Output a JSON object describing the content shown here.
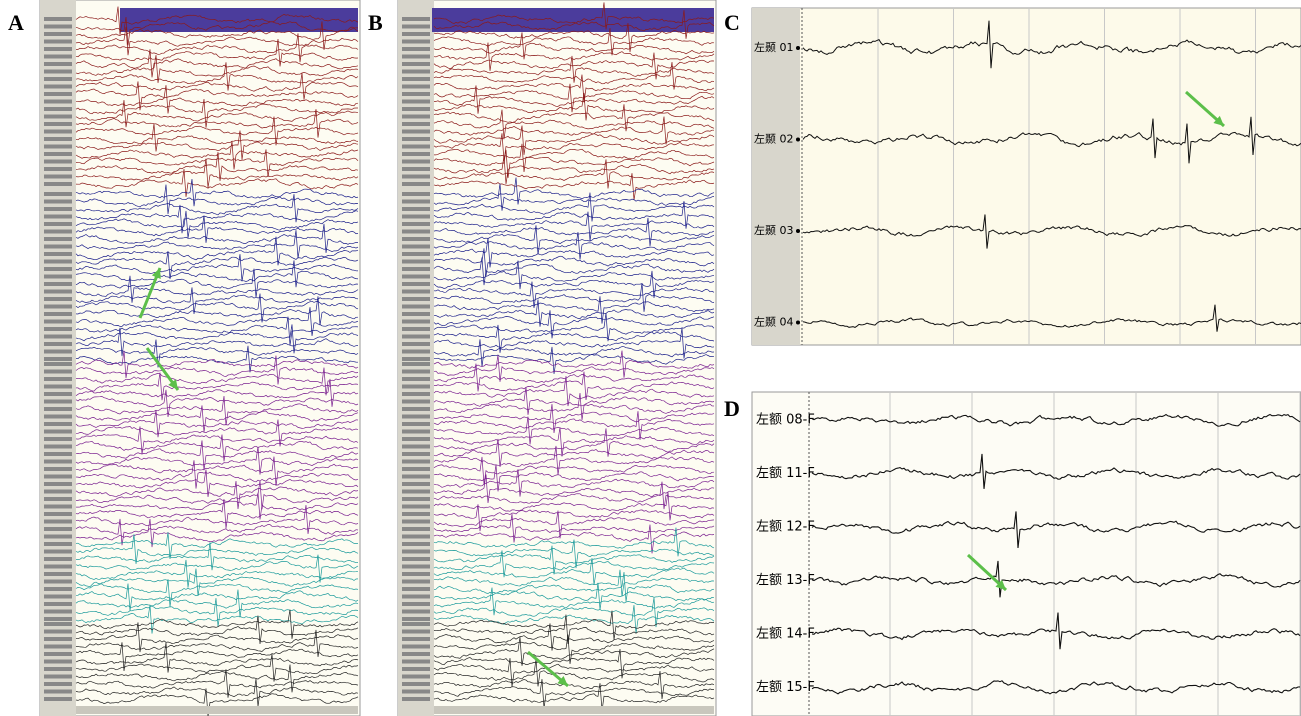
{
  "panels": [
    {
      "label": "A"
    },
    {
      "label": "B"
    },
    {
      "label": "C",
      "channels": [
        "左颞 01",
        "左颞 02",
        "左颞 03",
        "左颞 04"
      ]
    },
    {
      "label": "D",
      "channels": [
        "左额 08-F",
        "左额 11-F",
        "左额 12-F",
        "左额 13-F",
        "左额 14-F",
        "左额 15-F"
      ]
    }
  ]
}
